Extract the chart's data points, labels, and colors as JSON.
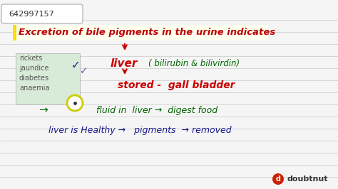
{
  "bg_color": "#f5f5f5",
  "line_color": "#c8c8c8",
  "title": "Excretion of bile pigments in the urine indicates",
  "title_bg": "#fffff0",
  "title_marker_color": "#ffdd00",
  "title_color": "#bb0000",
  "id_text": "642997157",
  "id_box_color": "#eeeeee",
  "options_bg": "#d8ead8",
  "options": [
    "rickets",
    "jaundice",
    "diabetes",
    "anaemia"
  ],
  "options_color": "#555555",
  "check_color": "#1a1a8c",
  "liver_text": "liver",
  "liver_color": "#cc0000",
  "bilirubin_text": "( bilirubin & bilivirdin)",
  "bilirubin_color": "#006600",
  "stored_text": "stored -  gall bladder",
  "stored_color": "#cc0000",
  "fluid_text": "fluid in  liver →  digest food",
  "fluid_color": "#006600",
  "last_text": "liver is Healthy →   pigments  → removed",
  "last_color": "#1a1a8c",
  "arrow_color": "#cc0000",
  "circle_edge_color": "#cccc00",
  "arrow_right_color": "#006600",
  "doubtnut_text": "doubtnut",
  "doubtnut_text_color": "#333333"
}
